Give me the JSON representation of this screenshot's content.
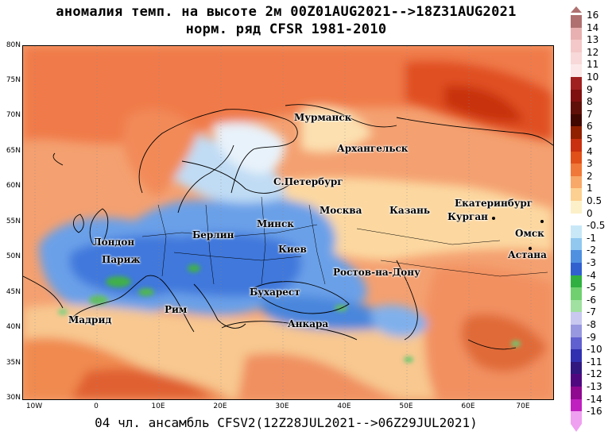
{
  "title_line1": "аномалия темп. на высоте 2м 00Z01AUG2021-->18Z31AUG2021",
  "title_line2": "норм. ряд CFSR 1981-2010",
  "footer": "04 чл. ансамбль CFSV2(12Z28JUL2021-->06Z29JUL2021)",
  "lat_labels": [
    "80N",
    "75N",
    "70N",
    "65N",
    "60N",
    "55N",
    "50N",
    "45N",
    "40N",
    "35N",
    "30N"
  ],
  "lon_labels": [
    "10W",
    "0",
    "10E",
    "20E",
    "30E",
    "40E",
    "50E",
    "60E",
    "70E"
  ],
  "cities": [
    {
      "name": "Мурманск"
    },
    {
      "name": "Архангельск"
    },
    {
      "name": "С.Петербург"
    },
    {
      "name": "Екатеринбург"
    },
    {
      "name": "Москва"
    },
    {
      "name": "Казань"
    },
    {
      "name": "Курган"
    },
    {
      "name": "Омск"
    },
    {
      "name": "Минск"
    },
    {
      "name": "Берлин"
    },
    {
      "name": "Лондон"
    },
    {
      "name": "Астана"
    },
    {
      "name": "Париж"
    },
    {
      "name": "Киев"
    },
    {
      "name": "Ростов-на-Дону"
    },
    {
      "name": "Бухарест"
    },
    {
      "name": "Рим"
    },
    {
      "name": "Мадрид"
    },
    {
      "name": "Анкара"
    }
  ],
  "colorbar": {
    "labels": [
      "16",
      "14",
      "13",
      "12",
      "11",
      "10",
      "9",
      "8",
      "7",
      "6",
      "5",
      "4",
      "3",
      "2",
      "1",
      "0.5",
      "0",
      "-0.5",
      "-1",
      "-2",
      "-3",
      "-4",
      "-5",
      "-6",
      "-7",
      "-8",
      "-9",
      "-10",
      "-11",
      "-12",
      "-13",
      "-14",
      "-16"
    ],
    "colors": [
      "#b07070",
      "#e8b0b0",
      "#f4c8c8",
      "#f8d8d8",
      "#fce8e8",
      "#a02020",
      "#801010",
      "#601008",
      "#400800",
      "#902000",
      "#c83010",
      "#e05018",
      "#f07838",
      "#f8a868",
      "#fcd090",
      "#fcf0c8",
      "#ffffff",
      "#c8e8f8",
      "#90c8f0",
      "#5090e0",
      "#3060d0",
      "#30b040",
      "#70d070",
      "#a0e0a0",
      "#c8c8f0",
      "#9898e0",
      "#6060d0",
      "#3030b0",
      "#301880",
      "#500880",
      "#900890",
      "#c020c0",
      "#f0a0f0"
    ]
  }
}
